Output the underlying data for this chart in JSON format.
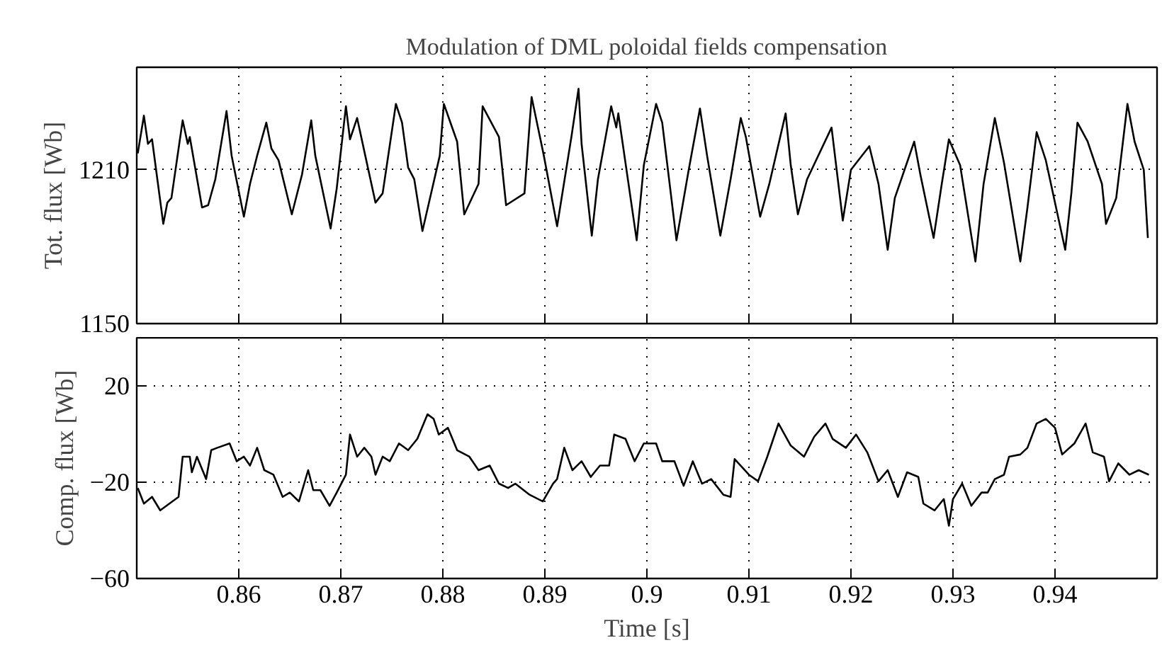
{
  "chart_data": [
    {
      "type": "line",
      "title": "Modulation of DML poloidal fields compensation",
      "ylabel": "Tot. flux [Wb]",
      "xlim": [
        0.85,
        0.95
      ],
      "xticks": [
        0.86,
        0.87,
        0.88,
        0.89,
        0.9,
        0.91,
        0.92,
        0.93,
        0.94
      ],
      "ylim": [
        1150,
        1250
      ],
      "yticks": [
        1150,
        1210
      ],
      "tick_labels": "y",
      "grid": true,
      "line_style": "solid",
      "series": [
        {
          "color": "#000000",
          "x": [
            0.8501,
            0.8507,
            0.8511,
            0.8515,
            0.8526,
            0.853,
            0.8534,
            0.8545,
            0.855,
            0.8552,
            0.8564,
            0.857,
            0.8577,
            0.8588,
            0.8593,
            0.8605,
            0.8611,
            0.8618,
            0.8627,
            0.8632,
            0.8639,
            0.8652,
            0.8662,
            0.8671,
            0.8675,
            0.869,
            0.8696,
            0.8705,
            0.8709,
            0.8716,
            0.8723,
            0.8734,
            0.8741,
            0.8754,
            0.876,
            0.8766,
            0.8772,
            0.878,
            0.8797,
            0.8801,
            0.8814,
            0.8821,
            0.8835,
            0.8839,
            0.8855,
            0.8862,
            0.888,
            0.8887,
            0.8899,
            0.8912,
            0.8926,
            0.8933,
            0.8936,
            0.8946,
            0.8952,
            0.8965,
            0.897,
            0.8972,
            0.899,
            0.8997,
            0.9009,
            0.9015,
            0.9029,
            0.9041,
            0.9052,
            0.9059,
            0.9072,
            0.9082,
            0.9092,
            0.9097,
            0.9111,
            0.912,
            0.9136,
            0.9141,
            0.9148,
            0.9157,
            0.9181,
            0.9186,
            0.9192,
            0.92,
            0.9218,
            0.9227,
            0.9236,
            0.9243,
            0.9262,
            0.9268,
            0.9281,
            0.9289,
            0.9296,
            0.9307,
            0.9322,
            0.933,
            0.9341,
            0.935,
            0.9366,
            0.9373,
            0.9382,
            0.9391,
            0.941,
            0.9416,
            0.9422,
            0.9432,
            0.9446,
            0.945,
            0.946,
            0.9471,
            0.9478,
            0.9487,
            0.9491
          ],
          "values": [
            1216.4,
            1231.1,
            1220.1,
            1221.9,
            1188.9,
            1197.2,
            1199.0,
            1229.3,
            1220.1,
            1222.8,
            1195.3,
            1196.2,
            1206.3,
            1232.9,
            1215.5,
            1191.7,
            1204.5,
            1215.5,
            1228.4,
            1218.3,
            1213.7,
            1192.6,
            1208.2,
            1229.3,
            1215.5,
            1187.1,
            1202.7,
            1234.8,
            1221.9,
            1230.2,
            1217.3,
            1197.2,
            1200.8,
            1235.7,
            1228.4,
            1210.9,
            1206.3,
            1186.1,
            1215.5,
            1235.7,
            1221.0,
            1192.6,
            1204.5,
            1234.8,
            1222.8,
            1196.2,
            1200.8,
            1238.4,
            1215.5,
            1188.0,
            1222.8,
            1241.6,
            1220.1,
            1184.3,
            1206.3,
            1234.8,
            1226.5,
            1232.0,
            1182.5,
            1211.8,
            1235.7,
            1228.4,
            1182.5,
            1210.0,
            1233.9,
            1215.5,
            1184.3,
            1206.3,
            1230.2,
            1222.8,
            1191.7,
            1204.5,
            1232.0,
            1211.8,
            1192.6,
            1206.3,
            1226.5,
            1210.0,
            1190.2,
            1210.0,
            1219.2,
            1204.5,
            1178.8,
            1199.0,
            1221.0,
            1208.2,
            1183.4,
            1204.5,
            1221.9,
            1211.8,
            1174.2,
            1204.5,
            1230.2,
            1212.8,
            1174.2,
            1195.3,
            1224.7,
            1213.7,
            1178.8,
            1200.8,
            1228.4,
            1221.0,
            1204.5,
            1188.9,
            1199.0,
            1235.7,
            1221.0,
            1210.0,
            1183.4
          ]
        }
      ]
    },
    {
      "type": "line",
      "xlabel": "Time [s]",
      "ylabel": "Comp. flux [Wb]",
      "xlim": [
        0.85,
        0.95
      ],
      "xticks": [
        0.86,
        0.87,
        0.88,
        0.89,
        0.9,
        0.91,
        0.92,
        0.93,
        0.94
      ],
      "ylim": [
        -60,
        40
      ],
      "yticks": [
        -60,
        -20,
        20
      ],
      "grid": true,
      "line_style": "solid",
      "series": [
        {
          "color": "#000000",
          "x": [
            0.8501,
            0.8507,
            0.8515,
            0.8523,
            0.8532,
            0.8541,
            0.8545,
            0.8552,
            0.8554,
            0.8559,
            0.8568,
            0.8573,
            0.8579,
            0.8591,
            0.8598,
            0.8605,
            0.8611,
            0.8618,
            0.8625,
            0.8634,
            0.8643,
            0.865,
            0.8659,
            0.8668,
            0.8673,
            0.868,
            0.8689,
            0.8696,
            0.8705,
            0.8709,
            0.8716,
            0.8723,
            0.873,
            0.8734,
            0.8741,
            0.8748,
            0.8757,
            0.8766,
            0.8775,
            0.8785,
            0.8791,
            0.8796,
            0.8805,
            0.8814,
            0.8826,
            0.8835,
            0.8846,
            0.8855,
            0.8864,
            0.8871,
            0.8885,
            0.8898,
            0.8908,
            0.8912,
            0.8919,
            0.8927,
            0.8936,
            0.8945,
            0.8954,
            0.8963,
            0.8968,
            0.8979,
            0.8988,
            0.8997,
            0.9009,
            0.9015,
            0.9027,
            0.9036,
            0.9045,
            0.9054,
            0.9063,
            0.9075,
            0.9082,
            0.9086,
            0.91,
            0.9109,
            0.9118,
            0.9129,
            0.9141,
            0.9154,
            0.9164,
            0.9175,
            0.9182,
            0.9195,
            0.9205,
            0.9216,
            0.9227,
            0.9236,
            0.9246,
            0.9255,
            0.9266,
            0.9271,
            0.9282,
            0.9291,
            0.9296,
            0.93,
            0.9309,
            0.9318,
            0.9328,
            0.9334,
            0.9341,
            0.935,
            0.9355,
            0.9366,
            0.9373,
            0.9382,
            0.9391,
            0.94,
            0.9407,
            0.9419,
            0.943,
            0.9437,
            0.9448,
            0.9453,
            0.9462,
            0.9473,
            0.9482,
            0.9492
          ],
          "values": [
            -22.4,
            -28.9,
            -26.1,
            -31.7,
            -28.9,
            -26.1,
            -9.4,
            -9.4,
            -15.9,
            -9.4,
            -18.7,
            -6.7,
            -5.7,
            -3.9,
            -11.3,
            -9.4,
            -13.1,
            -5.7,
            -15.0,
            -16.9,
            -26.1,
            -24.3,
            -28.0,
            -15.0,
            -23.3,
            -23.3,
            -29.8,
            -24.3,
            -16.9,
            -0.2,
            -9.4,
            -5.7,
            -9.4,
            -16.9,
            -9.4,
            -11.3,
            -3.9,
            -6.7,
            -2.0,
            8.2,
            6.3,
            -0.2,
            2.6,
            -6.7,
            -9.4,
            -15.0,
            -13.1,
            -20.6,
            -22.4,
            -20.6,
            -25.2,
            -28.0,
            -20.6,
            -18.7,
            -5.7,
            -15.0,
            -11.3,
            -17.8,
            -13.1,
            -13.1,
            -0.2,
            -2.0,
            -11.3,
            -3.9,
            -3.9,
            -11.3,
            -11.3,
            -21.5,
            -11.3,
            -20.6,
            -18.7,
            -25.2,
            -26.1,
            -10.4,
            -16.9,
            -19.6,
            -9.4,
            4.4,
            -4.8,
            -9.4,
            -1.1,
            4.4,
            -2.0,
            -5.7,
            -0.2,
            -7.6,
            -19.6,
            -15.0,
            -26.1,
            -15.9,
            -17.8,
            -28.9,
            -31.7,
            -27.0,
            -38.1,
            -27.0,
            -20.6,
            -29.8,
            -24.3,
            -24.3,
            -18.7,
            -16.9,
            -9.4,
            -8.5,
            -5.7,
            4.4,
            6.3,
            2.6,
            -8.5,
            -3.9,
            4.4,
            -7.6,
            -9.4,
            -19.6,
            -12.2,
            -16.9,
            -15.0,
            -16.9
          ]
        }
      ]
    }
  ]
}
